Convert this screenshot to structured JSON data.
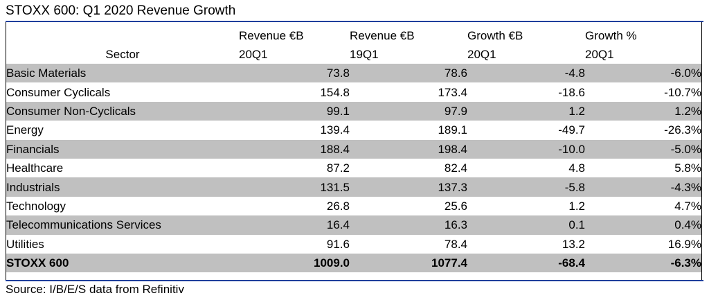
{
  "title": "STOXX 600: Q1 2020 Revenue Growth",
  "source": "Source: I/B/E/S data from Refinitiv",
  "colors": {
    "rule": "#1f3f9c",
    "shade": "#c0c0c0"
  },
  "chart_data": {
    "type": "table",
    "title": "STOXX 600: Q1 2020 Revenue Growth",
    "columns": [
      {
        "key": "sector",
        "line1": "",
        "line2": "Sector"
      },
      {
        "key": "rev20",
        "line1": "Revenue €B",
        "line2": "20Q1"
      },
      {
        "key": "rev19",
        "line1": "Revenue €B",
        "line2": "19Q1"
      },
      {
        "key": "growth",
        "line1": "Growth €B",
        "line2": "20Q1"
      },
      {
        "key": "pct",
        "line1": "Growth %",
        "line2": "20Q1"
      }
    ],
    "rows": [
      {
        "sector": "Basic Materials",
        "rev20": "73.8",
        "rev19": "78.6",
        "growth": "-4.8",
        "pct": "-6.0%"
      },
      {
        "sector": "Consumer Cyclicals",
        "rev20": "154.8",
        "rev19": "173.4",
        "growth": "-18.6",
        "pct": "-10.7%"
      },
      {
        "sector": "Consumer Non-Cyclicals",
        "rev20": "99.1",
        "rev19": "97.9",
        "growth": "1.2",
        "pct": "1.2%"
      },
      {
        "sector": "Energy",
        "rev20": "139.4",
        "rev19": "189.1",
        "growth": "-49.7",
        "pct": "-26.3%"
      },
      {
        "sector": "Financials",
        "rev20": "188.4",
        "rev19": "198.4",
        "growth": "-10.0",
        "pct": "-5.0%"
      },
      {
        "sector": "Healthcare",
        "rev20": "87.2",
        "rev19": "82.4",
        "growth": "4.8",
        "pct": "5.8%"
      },
      {
        "sector": "Industrials",
        "rev20": "131.5",
        "rev19": "137.3",
        "growth": "-5.8",
        "pct": "-4.3%"
      },
      {
        "sector": "Technology",
        "rev20": "26.8",
        "rev19": "25.6",
        "growth": "1.2",
        "pct": "4.7%"
      },
      {
        "sector": "Telecommunications Services",
        "rev20": "16.4",
        "rev19": "16.3",
        "growth": "0.1",
        "pct": "0.4%"
      },
      {
        "sector": "Utilities",
        "rev20": "91.6",
        "rev19": "78.4",
        "growth": "13.2",
        "pct": "16.9%"
      }
    ],
    "total": {
      "sector": "STOXX 600",
      "rev20": "1009.0",
      "rev19": "1077.4",
      "growth": "-68.4",
      "pct": "-6.3%"
    }
  }
}
